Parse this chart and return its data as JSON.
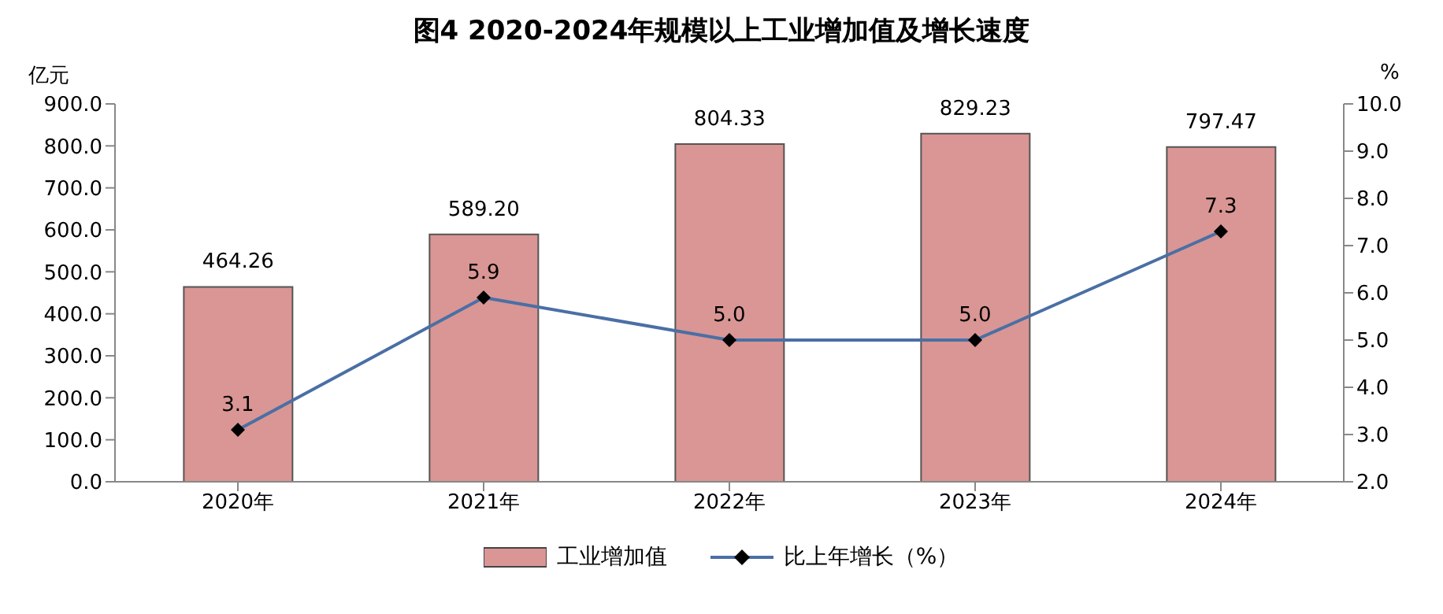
{
  "chart_data": {
    "type": "bar",
    "title": "图4 2020-2024年规模以上工业增加值及增长速度",
    "ylabel": "亿元",
    "y2label": "%",
    "categories": [
      "2020年",
      "2021年",
      "2022年",
      "2023年",
      "2024年"
    ],
    "series": [
      {
        "name": "工业增加值",
        "color": "#d99694",
        "values": [
          464.26,
          589.2,
          804.33,
          829.23,
          797.47
        ],
        "value_labels": [
          "464.26",
          "589.20",
          "804.33",
          "829.23",
          "797.47"
        ]
      },
      {
        "name": "比上年增长（%）",
        "type": "line",
        "axis": "y2",
        "color": "#4a6fa5",
        "marker": "diamond",
        "values": [
          3.1,
          5.9,
          5.0,
          5.0,
          7.3
        ],
        "value_labels": [
          "3.1",
          "5.9",
          "5.0",
          "5.0",
          "7.3"
        ]
      }
    ],
    "ylim": [
      0,
      900
    ],
    "yticks": [
      {
        "value": 0,
        "label": "0.0"
      },
      {
        "value": 100,
        "label": "100.0"
      },
      {
        "value": 200,
        "label": "200.0"
      },
      {
        "value": 300,
        "label": "300.0"
      },
      {
        "value": 400,
        "label": "400.0"
      },
      {
        "value": 500,
        "label": "500.0"
      },
      {
        "value": 600,
        "label": "600.0"
      },
      {
        "value": 700,
        "label": "700.0"
      },
      {
        "value": 800,
        "label": "800.0"
      },
      {
        "value": 900,
        "label": "900.0"
      }
    ],
    "y2lim": [
      2,
      10
    ],
    "y2ticks": [
      {
        "value": 2,
        "label": "2.0"
      },
      {
        "value": 3,
        "label": "3.0"
      },
      {
        "value": 4,
        "label": "4.0"
      },
      {
        "value": 5,
        "label": "5.0"
      },
      {
        "value": 6,
        "label": "6.0"
      },
      {
        "value": 7,
        "label": "7.0"
      },
      {
        "value": 8,
        "label": "8.0"
      },
      {
        "value": 9,
        "label": "9.0"
      },
      {
        "value": 10,
        "label": "10.0"
      }
    ],
    "grid": false,
    "legend": "bottom"
  }
}
